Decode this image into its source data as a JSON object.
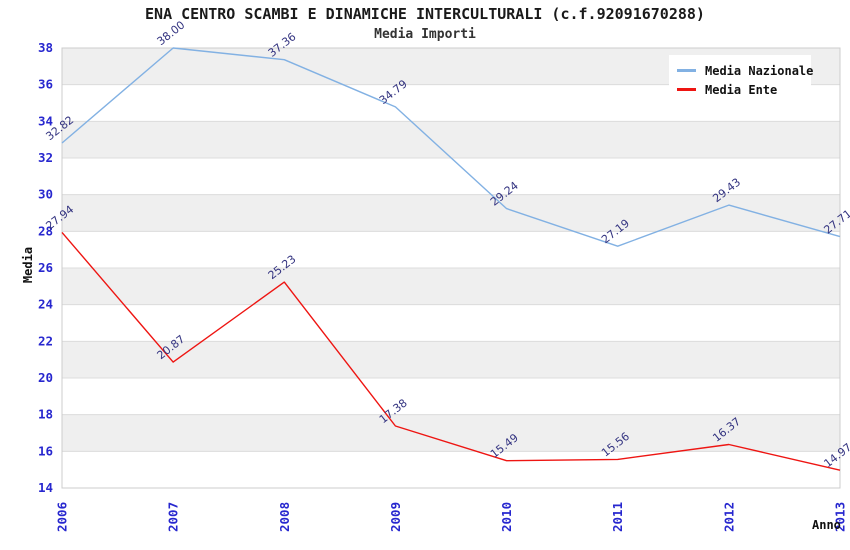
{
  "header": {
    "title": "ENA CENTRO SCAMBI E DINAMICHE INTERCULTURALI (c.f.92091670288)",
    "subtitle": "Media Importi"
  },
  "axes": {
    "x_title": "Anno",
    "y_title": "Media"
  },
  "legend": {
    "position": "top-right",
    "items": [
      {
        "label": "Media Nazionale",
        "color": "#82B1E3"
      },
      {
        "label": "Media Ente",
        "color": "#EE1512"
      }
    ]
  },
  "chart_data": {
    "type": "line",
    "title": "ENA CENTRO SCAMBI E DINAMICHE INTERCULTURALI (c.f.92091670288)",
    "subtitle": "Media Importi",
    "xlabel": "Anno",
    "ylabel": "Media",
    "categories": [
      "2006",
      "2007",
      "2008",
      "2009",
      "2010",
      "2011",
      "2012",
      "2013"
    ],
    "series": [
      {
        "name": "Media Nazionale",
        "color": "#82B1E3",
        "values": [
          32.82,
          38.0,
          37.36,
          34.79,
          29.24,
          27.19,
          29.43,
          27.71
        ]
      },
      {
        "name": "Media Ente",
        "color": "#EE1512",
        "values": [
          27.94,
          20.87,
          25.23,
          17.38,
          15.49,
          15.56,
          16.37,
          14.97
        ]
      }
    ],
    "ylim": [
      14,
      38
    ],
    "ytick_step": 2,
    "grid": true,
    "band_fill": "#EFEFEF",
    "gridline_color": "#DCDCDC",
    "plot_border_color": "#CCCCCC",
    "axis_tick_color": "#2727CF",
    "data_label_color": "#333380",
    "legend_position": "top-right"
  }
}
